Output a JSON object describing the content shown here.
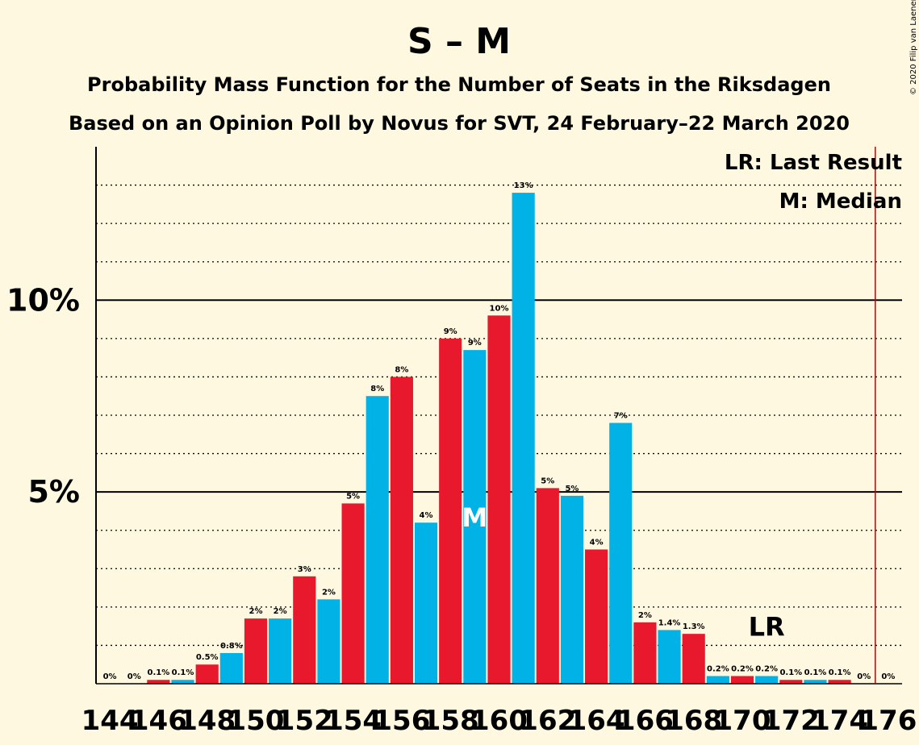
{
  "chart_data": {
    "type": "bar",
    "title": "S – M",
    "subtitle": "Probability Mass Function for the Number of Seats in the Riksdagen",
    "subtitle2": "Based on an Opinion Poll by Novus for SVT, 24 February–22 March 2020",
    "copyright": "© 2020 Filip van Laenen",
    "legend": {
      "lr": "LR: Last Result",
      "median": "M: Median",
      "placement": "top-right"
    },
    "x_tick_labels": [
      "144",
      "146",
      "148",
      "150",
      "152",
      "154",
      "156",
      "158",
      "160",
      "162",
      "164",
      "166",
      "168",
      "170",
      "172",
      "174",
      "176"
    ],
    "y_tick_labels": [
      "5%",
      "10%"
    ],
    "x": [
      144,
      145,
      146,
      147,
      148,
      149,
      150,
      151,
      152,
      153,
      154,
      155,
      156,
      157,
      158,
      159,
      160,
      161,
      162,
      163,
      164,
      165,
      166,
      167,
      168,
      169,
      170,
      171,
      172,
      173,
      174,
      175,
      176
    ],
    "values": [
      0,
      0,
      0.1,
      0.1,
      0.5,
      0.8,
      1.7,
      1.7,
      2.8,
      2.2,
      4.7,
      7.5,
      8.0,
      4.2,
      9.0,
      8.7,
      9.6,
      12.8,
      5.1,
      4.9,
      3.5,
      6.8,
      1.6,
      1.4,
      1.3,
      0.2,
      0.2,
      0.2,
      0.1,
      0.1,
      0.1,
      0,
      0
    ],
    "labels": [
      "0%",
      "0%",
      "0.1%",
      "0.1%",
      "0.5%",
      "0.8%",
      "2%",
      "2%",
      "3%",
      "2%",
      "5%",
      "8%",
      "8%",
      "4%",
      "9%",
      "9%",
      "10%",
      "13%",
      "5%",
      "5%",
      "4%",
      "7%",
      "2%",
      "1.4%",
      "1.3%",
      "0.2%",
      "0.2%",
      "0.2%",
      "0.1%",
      "0.1%",
      "0.1%",
      "0%",
      "0%"
    ],
    "ylim": [
      0,
      14
    ],
    "median_seat": 159,
    "median_marker": "M",
    "last_result_seat": 171,
    "last_result_marker": "LR",
    "majority_line_seat": 175,
    "colors": {
      "even": "#e8192c",
      "odd": "#00b2e5",
      "majority_line": "#c00000",
      "background": "#fff8e0",
      "median_text": "#ffffff"
    }
  }
}
